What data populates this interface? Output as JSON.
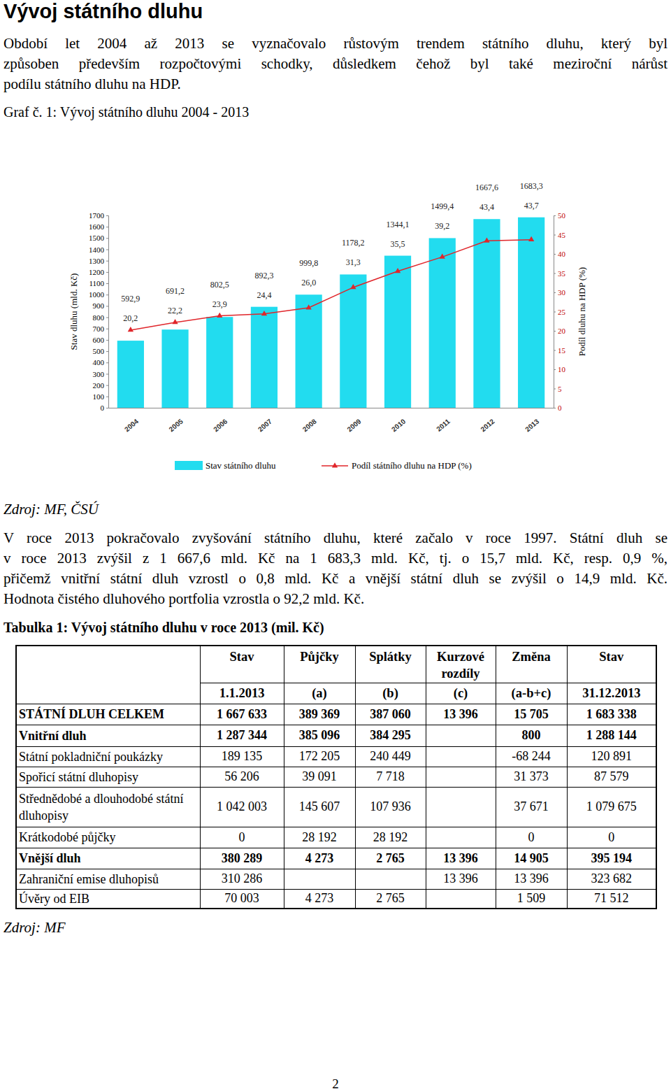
{
  "heading": "Vývoj státního dluhu",
  "intro": {
    "lines": [
      "Období let 2004 až 2013 se vyznačovalo růstovým trendem státního dluhu, který byl",
      "způsoben především rozpočtovými schodky, důsledkem čehož byl také meziroční nárůst",
      "podílu státního dluhu na HDP."
    ]
  },
  "chart_data": {
    "type": "bar",
    "title": "Graf č. 1: Vývoj státního dluhu 2004 - 2013",
    "categories": [
      "2004",
      "2005",
      "2006",
      "2007",
      "2008",
      "2009",
      "2010",
      "2011",
      "2012",
      "2013"
    ],
    "series": [
      {
        "name": "Stav státního dluhu",
        "type": "bar",
        "color": "#22dcef",
        "values": [
          592.9,
          691.2,
          802.5,
          892.3,
          999.8,
          1178.2,
          1344.1,
          1499.4,
          1667.6,
          1683.3
        ],
        "value_labels": [
          "592,9",
          "691,2",
          "802,5",
          "892,3",
          "999,8",
          "1178,2",
          "1344,1",
          "1499,4",
          "1667,6",
          "1683,3"
        ]
      },
      {
        "name": "Podíl státního dluhu na HDP (%)",
        "type": "line",
        "axis": "y2",
        "color": "#e0262b",
        "marker": "triangle",
        "values": [
          20.2,
          22.2,
          23.9,
          24.4,
          26.0,
          31.3,
          35.5,
          39.2,
          43.4,
          43.7
        ],
        "value_labels": [
          "20,2",
          "22,2",
          "23,9",
          "24,4",
          "26,0",
          "31,3",
          "35,5",
          "39,2",
          "43,4",
          "43,7"
        ]
      }
    ],
    "y_label": "Stav dluhu (mld. Kč)",
    "y2_label": "Podíl dluhu na HDP (%)",
    "ylim": [
      0,
      1700
    ],
    "yticks": [
      0,
      100,
      200,
      300,
      400,
      500,
      600,
      700,
      800,
      900,
      1000,
      1100,
      1200,
      1300,
      1400,
      1500,
      1600,
      1700
    ],
    "y2lim": [
      0,
      50
    ],
    "y2ticks": [
      0,
      5,
      10,
      15,
      20,
      25,
      30,
      35,
      40,
      45,
      50
    ],
    "data_labels": true,
    "grid": false,
    "legend": "bottom"
  },
  "chart_source": "Zdroj: MF, ČSÚ",
  "paragraph": {
    "lines": [
      "V roce 2013 pokračovalo zvyšování státního dluhu, které začalo v roce 1997. Státní dluh se",
      "v roce 2013 zvýšil z 1 667,6 mld. Kč na 1 683,3 mld. Kč, tj.  o 15,7 mld. Kč, resp. 0,9 %,",
      "přičemž vnitřní státní dluh vzrostl o 0,8 mld. Kč a vnější státní dluh se zvýšil o 14,9 mld. Kč.",
      "Hodnota čistého dluhového portfolia vzrostla o 92,2 mld. Kč."
    ]
  },
  "table_caption": "Tabulka 1: Vývoj státního dluhu v roce 2013 (mil. Kč)",
  "table": {
    "header": [
      [
        "Stav",
        "Půjčky",
        "Splátky",
        "Kurzové rozdíly",
        "Změna",
        "Stav"
      ],
      [
        "1.1.2013",
        "(a)",
        "(b)",
        "(c)",
        "(a-b+c)",
        "31.12.2013"
      ]
    ],
    "rows": [
      {
        "label": "STÁTNÍ DLUH CELKEM",
        "cells": [
          "1 667 633",
          "389 369",
          "387 060",
          "13 396",
          "15 705",
          "1 683 338"
        ]
      },
      {
        "label": "Vnitřní dluh",
        "cells": [
          "1 287 344",
          "385 096",
          "384 295",
          null,
          "800",
          "1 288 144"
        ]
      },
      {
        "label": "Státní pokladniční poukázky",
        "cells": [
          "189 135",
          "172 205",
          "240 449",
          null,
          "-68 244",
          "120 891"
        ]
      },
      {
        "label": "Spořicí státní dluhopisy",
        "cells": [
          "56 206",
          "39 091",
          "7 718",
          null,
          "31 373",
          "87 579"
        ]
      },
      {
        "label": "Střednědobé a dlouhodobé státní dluhopisy",
        "cells": [
          "1 042 003",
          "145 607",
          "107 936",
          null,
          "37 671",
          "1 079 675"
        ]
      },
      {
        "label": "Krátkodobé půjčky",
        "cells": [
          "0",
          "28 192",
          "28 192",
          null,
          "0",
          "0"
        ]
      },
      {
        "label": "Vnější dluh",
        "cells": [
          "380 289",
          "4 273",
          "2 765",
          "13 396",
          "14 905",
          "395 194"
        ]
      },
      {
        "label": "Zahraniční emise dluhopisů",
        "cells": [
          "310 286",
          null,
          null,
          "13 396",
          "13 396",
          "323 682"
        ]
      },
      {
        "label": "Úvěry od EIB",
        "cells": [
          "70 003",
          "4 273",
          "2 765",
          null,
          "1 509",
          "71 512"
        ]
      }
    ]
  },
  "table_source": "Zdroj: MF",
  "page_number": "2"
}
